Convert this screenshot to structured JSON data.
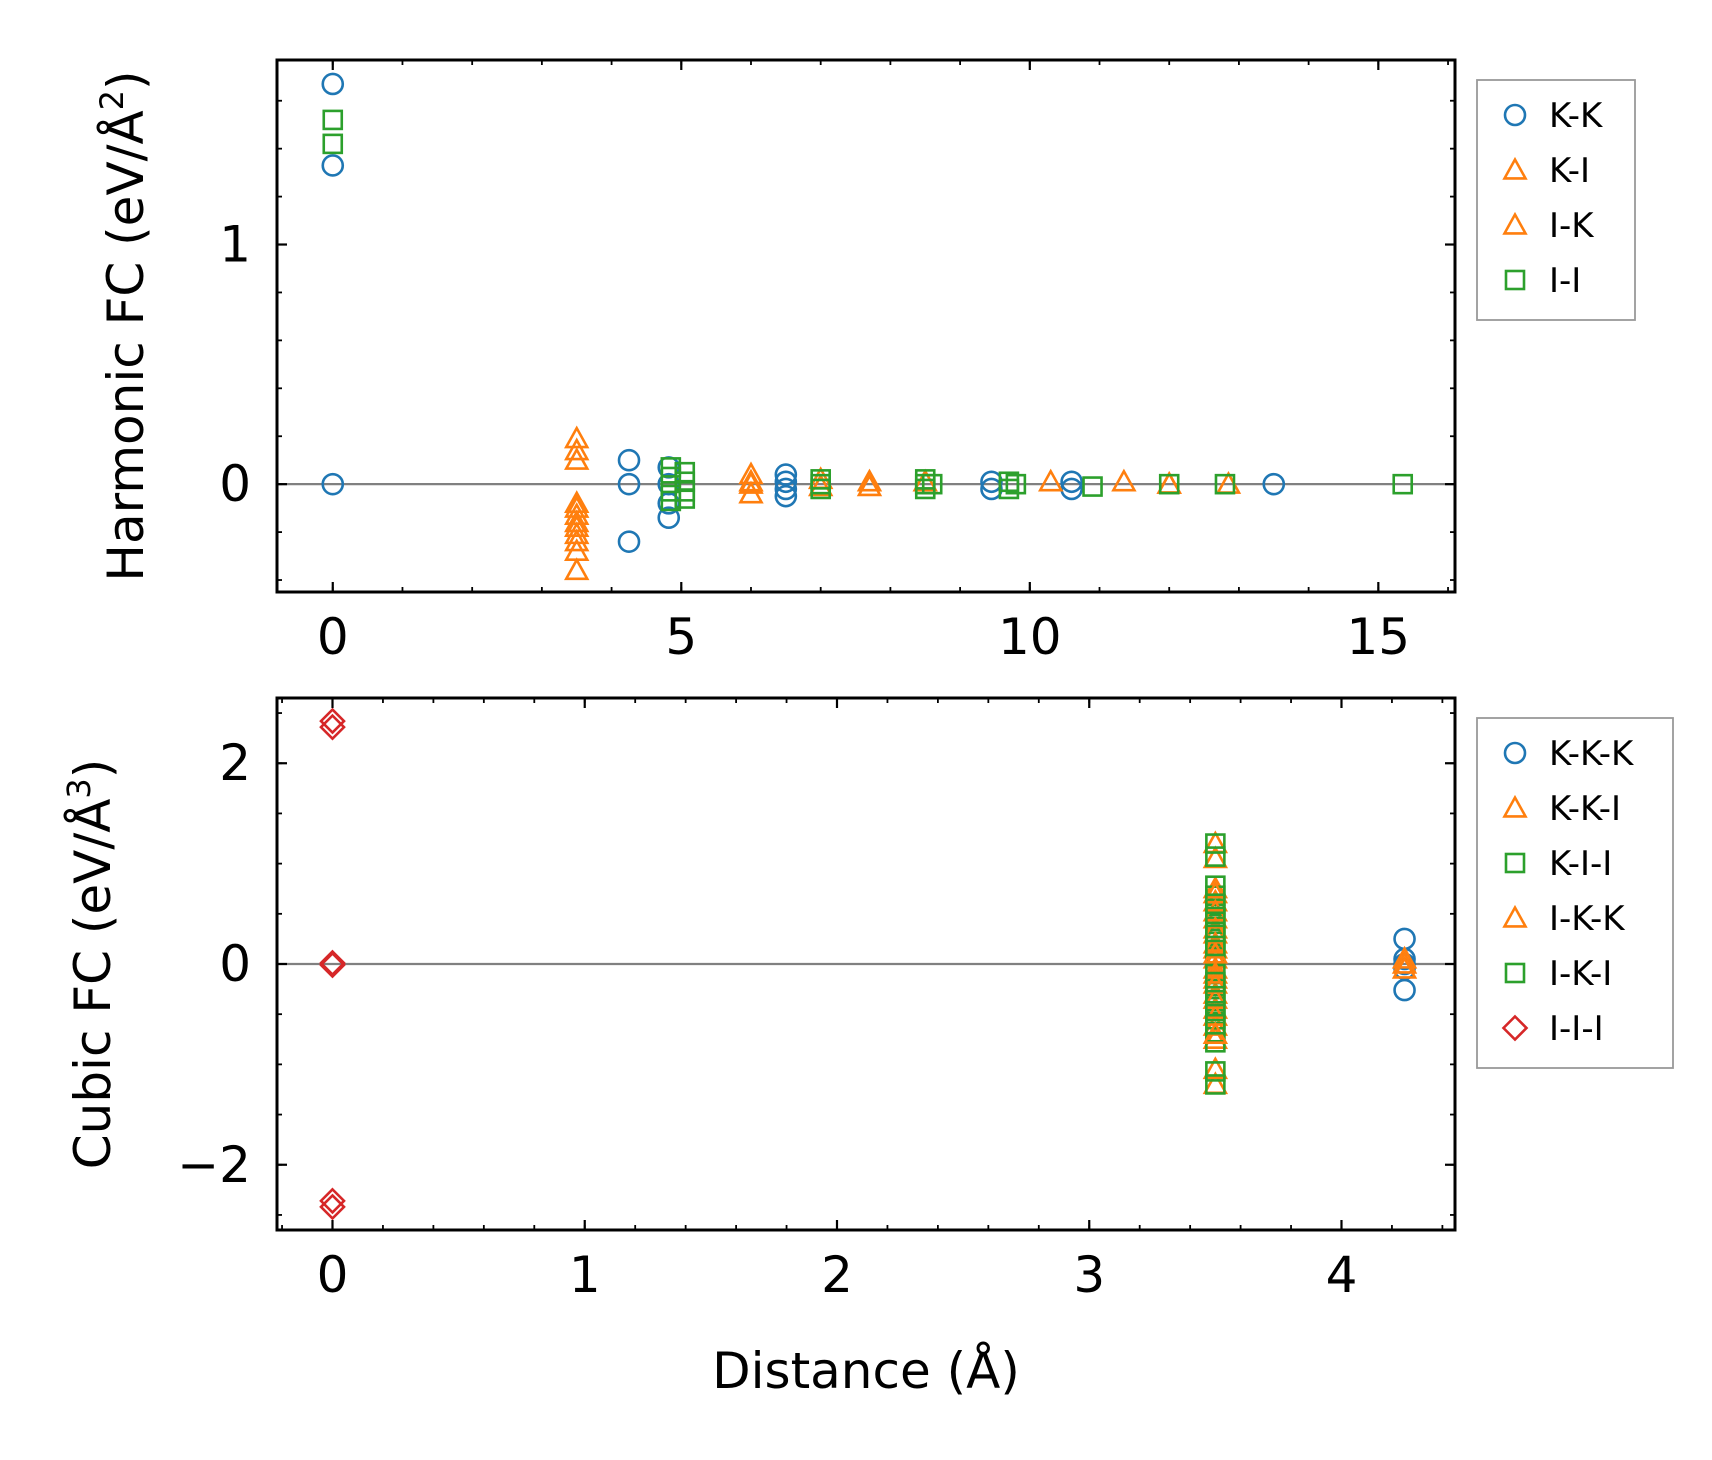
{
  "colors": {
    "blue": "#1f77b4",
    "orange": "#ff7f0e",
    "green": "#2ca02c",
    "red": "#d62728",
    "zero_line": "#808080"
  },
  "chart_data": [
    {
      "type": "scatter",
      "xlabel": "",
      "ylabel": "Harmonic FC (eV/Å",
      "ylabel_sup": "2",
      "ylabel_end": ")",
      "xlim": [
        -0.8,
        16.1
      ],
      "ylim": [
        -0.45,
        1.77
      ],
      "xticks": [
        {
          "v": 0,
          "label": "0"
        },
        {
          "v": 5,
          "label": "5"
        },
        {
          "v": 10,
          "label": "10"
        },
        {
          "v": 15,
          "label": "15"
        }
      ],
      "yticks": [
        {
          "v": 0,
          "label": "0"
        },
        {
          "v": 1,
          "label": "1"
        }
      ],
      "x_minor_step": 1,
      "y_minor_step": 0.2,
      "legend": {
        "placement": "outside-right-top"
      },
      "series": [
        {
          "name": "K-K",
          "marker": "circle",
          "color": "#1f77b4",
          "x": [
            0,
            0,
            0,
            4.25,
            4.25,
            4.25,
            4.82,
            4.82,
            4.82,
            4.82,
            6.5,
            6.5,
            6.5,
            6.5,
            9.45,
            9.45,
            10.6,
            10.6,
            13.5
          ],
          "y": [
            1.67,
            1.33,
            0,
            0.1,
            0,
            -0.24,
            0.07,
            0,
            -0.08,
            -0.14,
            0.04,
            0.01,
            -0.02,
            -0.05,
            0.01,
            -0.02,
            0.01,
            -0.02,
            0
          ]
        },
        {
          "name": "K-I",
          "marker": "triangle",
          "color": "#ff7f0e",
          "x": [
            3.5,
            3.5,
            3.5,
            3.5,
            3.5,
            3.5,
            3.5,
            3.5,
            6.0,
            6.0,
            6.0,
            7.0,
            7.7,
            8.5,
            10.3,
            11.35,
            12.0,
            12.85
          ],
          "y": [
            0.19,
            0.14,
            0.1,
            -0.08,
            -0.13,
            -0.18,
            -0.24,
            -0.36,
            0.04,
            0,
            -0.04,
            0.02,
            0.01,
            0.01,
            0.01,
            0.01,
            0,
            0
          ]
        },
        {
          "name": "I-K",
          "marker": "triangle",
          "color": "#ff7f0e",
          "x": [
            3.5,
            3.5,
            3.5,
            3.5,
            6.0,
            7.0,
            7.7,
            12.0
          ],
          "y": [
            -0.1,
            -0.16,
            -0.21,
            -0.28,
            0.01,
            -0.01,
            -0.01,
            0
          ]
        },
        {
          "name": "I-I",
          "marker": "square",
          "color": "#2ca02c",
          "x": [
            0,
            0,
            4.85,
            4.85,
            4.85,
            4.85,
            5.05,
            5.05,
            5.05,
            5.05,
            7.0,
            7.0,
            7.0,
            8.5,
            8.5,
            8.5,
            8.6,
            9.7,
            9.7,
            9.8,
            10.9,
            12.0,
            12.8,
            15.35
          ],
          "y": [
            1.52,
            1.42,
            0.07,
            0.03,
            -0.03,
            -0.07,
            0.05,
            0.01,
            -0.03,
            -0.06,
            0.02,
            0,
            -0.02,
            0.02,
            0,
            -0.02,
            0,
            0.01,
            -0.02,
            0,
            -0.01,
            0,
            0,
            0
          ]
        }
      ]
    },
    {
      "type": "scatter",
      "xlabel": "Distance (Å)",
      "ylabel": "Cubic FC (eV/Å",
      "ylabel_sup": "3",
      "ylabel_end": ")",
      "xlim": [
        -0.22,
        4.45
      ],
      "ylim": [
        -2.65,
        2.65
      ],
      "xticks": [
        {
          "v": 0,
          "label": "0"
        },
        {
          "v": 1,
          "label": "1"
        },
        {
          "v": 2,
          "label": "2"
        },
        {
          "v": 3,
          "label": "3"
        },
        {
          "v": 4,
          "label": "4"
        }
      ],
      "yticks": [
        {
          "v": -2,
          "label": "−2"
        },
        {
          "v": 0,
          "label": "0"
        },
        {
          "v": 2,
          "label": "2"
        }
      ],
      "x_minor_step": 0.2,
      "y_minor_step": 0.5,
      "legend": {
        "placement": "outside-right-top"
      },
      "series": [
        {
          "name": "K-K-K",
          "marker": "circle",
          "color": "#1f77b4",
          "x": [
            4.25,
            4.25,
            4.25,
            4.25,
            4.25
          ],
          "y": [
            0.25,
            0.05,
            0,
            -0.05,
            -0.26
          ]
        },
        {
          "name": "K-K-I",
          "marker": "triangle",
          "color": "#ff7f0e",
          "x": [
            3.5,
            3.5,
            3.5,
            3.5,
            3.5,
            3.5,
            3.5,
            3.5,
            3.5,
            3.5,
            3.5,
            3.5,
            3.5,
            3.5,
            3.5,
            3.5,
            4.25,
            4.25
          ],
          "y": [
            1.2,
            1.05,
            0.75,
            0.62,
            0.45,
            0.3,
            0.15,
            0.05,
            -0.05,
            -0.15,
            -0.3,
            -0.45,
            -0.62,
            -0.75,
            -1.05,
            -1.2,
            0.05,
            -0.05
          ]
        },
        {
          "name": "K-I-I",
          "marker": "square",
          "color": "#2ca02c",
          "x": [
            3.5,
            3.5,
            3.5,
            3.5,
            3.5,
            3.5,
            3.5,
            3.5,
            3.5,
            3.5,
            3.5,
            3.5,
            3.5,
            3.5,
            3.5,
            3.5
          ],
          "y": [
            1.2,
            1.07,
            0.78,
            0.68,
            0.55,
            0.4,
            0.25,
            0.1,
            -0.1,
            -0.25,
            -0.4,
            -0.55,
            -0.68,
            -0.78,
            -1.07,
            -1.2
          ]
        },
        {
          "name": "I-K-K",
          "marker": "triangle",
          "color": "#ff7f0e",
          "x": [
            3.5,
            3.5,
            3.5,
            3.5,
            3.5,
            3.5,
            3.5,
            3.5,
            3.5,
            3.5,
            4.25
          ],
          "y": [
            0.7,
            0.52,
            0.35,
            0.2,
            0.1,
            -0.1,
            -0.2,
            -0.35,
            -0.52,
            -0.7,
            0
          ]
        },
        {
          "name": "I-K-I",
          "marker": "square",
          "color": "#2ca02c",
          "x": [
            3.5,
            3.5,
            3.5,
            3.5,
            3.5,
            3.5,
            3.5,
            3.5
          ],
          "y": [
            0.6,
            0.47,
            0.32,
            0.18,
            -0.18,
            -0.32,
            -0.47,
            -0.6
          ]
        },
        {
          "name": "I-I-I",
          "marker": "diamond",
          "color": "#d62728",
          "x": [
            0,
            0,
            0,
            0,
            0,
            0
          ],
          "y": [
            2.42,
            2.36,
            0.01,
            -0.01,
            -2.36,
            -2.42
          ]
        }
      ]
    }
  ]
}
